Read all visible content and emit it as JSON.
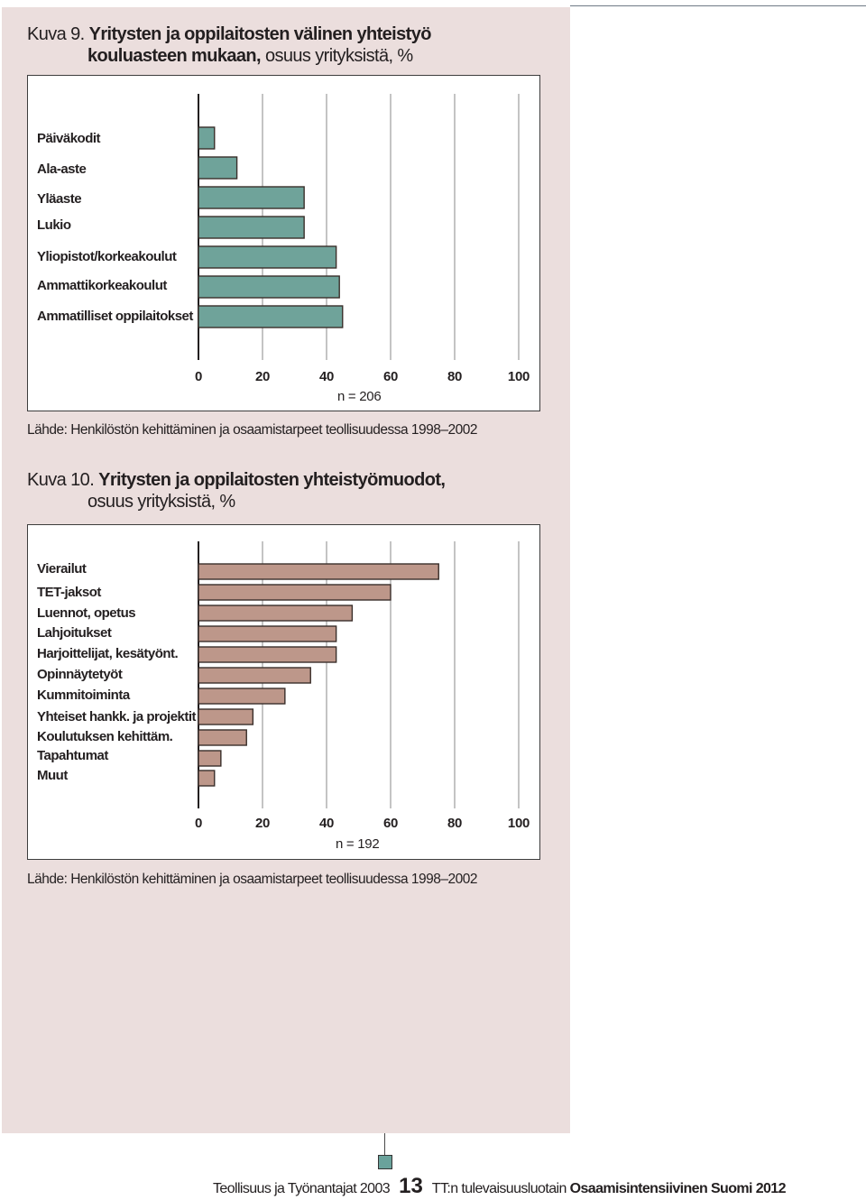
{
  "figure1": {
    "number": "Kuva 9.",
    "title_bold": "Yritysten ja oppilaitosten välinen yhteistyö",
    "title_line2_bold": "kouluasteen mukaan,",
    "title_line2_rest": " osuus yrityksistä, %",
    "n_label": "n = 206",
    "source": "Lähde: Henkilöstön kehittäminen ja osaamistarpeet teollisuudessa 1998–2002"
  },
  "figure2": {
    "number": "Kuva 10.",
    "title_bold": "Yritysten ja oppilaitosten yhteistyömuodot,",
    "title_line2_rest": "osuus yrityksistä, %",
    "n_label": "n = 192",
    "source": "Lähde: Henkilöstön kehittäminen ja osaamistarpeet teollisuudessa 1998–2002"
  },
  "chart_data": [
    {
      "type": "bar",
      "orientation": "horizontal",
      "categories": [
        "Päiväkodit",
        "Ala-aste",
        "Yläaste",
        "Lukio",
        "Yliopistot/korkeakoulut",
        "Ammattikorkeakoulut",
        "Ammatilliset oppilaitokset"
      ],
      "values": [
        5,
        12,
        33,
        33,
        43,
        44,
        45
      ],
      "xticks": [
        "0",
        "20",
        "40",
        "60",
        "80",
        "100"
      ],
      "xlim": [
        0,
        100
      ],
      "grid": true,
      "bar_color": "#6fa39a"
    },
    {
      "type": "bar",
      "orientation": "horizontal",
      "categories": [
        "Vierailut",
        "TET-jaksot",
        "Luennot, opetus",
        "Lahjoitukset",
        "Harjoittelijat, kesätyönt.",
        "Opinnäytetyöt",
        "Kummitoiminta",
        "Yhteiset hankk. ja projektit",
        "Koulutuksen kehittäm.",
        "Tapahtumat",
        "Muut"
      ],
      "values": [
        75,
        60,
        48,
        43,
        43,
        35,
        27,
        17,
        15,
        7,
        5
      ],
      "xticks": [
        "0",
        "20",
        "40",
        "60",
        "80",
        "100"
      ],
      "xlim": [
        0,
        100
      ],
      "grid": true,
      "bar_color": "#bd978a"
    }
  ],
  "footer": {
    "left": "Teollisuus ja Työnantajat 2003",
    "page": "13",
    "right_prefix": "TT:n tulevaisuusluotain",
    "right_bold": "Osaamisintensiivinen Suomi 2012"
  }
}
